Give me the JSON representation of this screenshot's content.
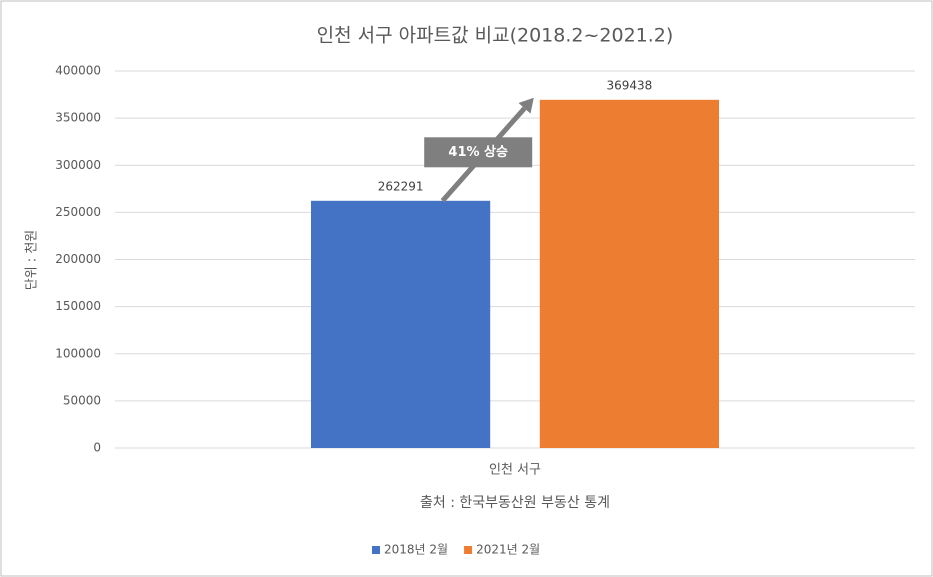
{
  "chart_data": {
    "type": "bar",
    "title": "인천 서구 아파트값 비교(2018.2~2021.2)",
    "y_label": "단위 : 천원",
    "x_label": "출처 : 한국부동산원 부동산 통계",
    "annotation": "41% 상승",
    "categories": [
      "인천 서구"
    ],
    "series": [
      {
        "name": "2018년 2월",
        "color": "#4472c4",
        "values": [
          262291
        ]
      },
      {
        "name": "2021년 2월",
        "color": "#ed7d31",
        "values": [
          369438
        ]
      }
    ],
    "ylim": [
      0,
      400000
    ],
    "yticks": [
      0,
      50000,
      100000,
      150000,
      200000,
      250000,
      300000,
      350000,
      400000
    ],
    "grid": true,
    "legend": "bottom"
  }
}
